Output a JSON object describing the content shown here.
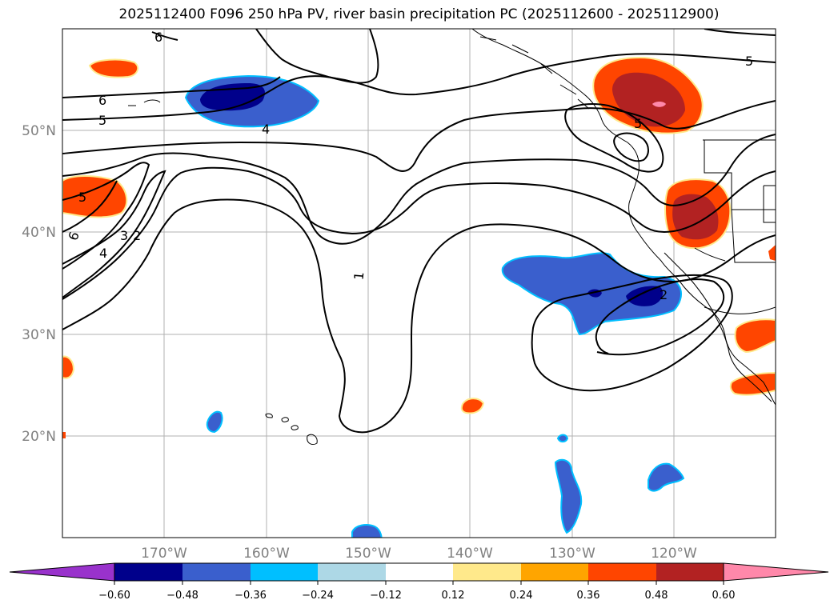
{
  "title": "2025112400 F096 250 hPa PV, river basin precipitation PC (2025112600 - 2025112900)",
  "map": {
    "lon_labels": [
      "170°W",
      "160°W",
      "150°W",
      "140°W",
      "130°W",
      "120°W"
    ],
    "lat_labels": [
      "50°N",
      "40°N",
      "30°N",
      "20°N"
    ],
    "contour_labels": [
      "6",
      "6",
      "5",
      "5",
      "5",
      "5",
      "4",
      "4",
      "3",
      "2",
      "1",
      "6",
      "2"
    ]
  },
  "colorbar": {
    "ticks": [
      "−0.60",
      "−0.48",
      "−0.36",
      "−0.24",
      "−0.12",
      "0.12",
      "0.24",
      "0.36",
      "0.48",
      "0.60"
    ],
    "colors": [
      "#9932cc",
      "#00008b",
      "#3a5fcd",
      "#00bfff",
      "#add8e6",
      "#ffffff",
      "#ffe98b",
      "#ffa500",
      "#ff4500",
      "#b22222",
      "#ff88aa"
    ]
  }
}
